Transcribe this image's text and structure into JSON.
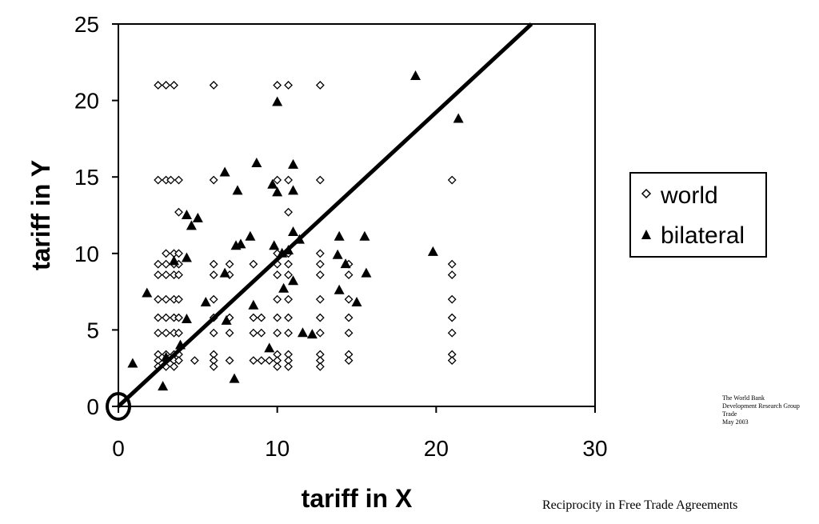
{
  "chart_data": {
    "type": "scatter",
    "xlabel": "tariff in X",
    "ylabel": "tariff in Y",
    "xlim": [
      0,
      30
    ],
    "ylim": [
      0,
      25
    ],
    "xticks": [
      0,
      10,
      20,
      30
    ],
    "yticks": [
      0,
      5,
      10,
      15,
      20,
      25
    ],
    "grid": false,
    "legend_position": "right",
    "reference_line": {
      "from": [
        0,
        0
      ],
      "to": [
        26,
        25
      ]
    },
    "highlight_origin": true,
    "series": [
      {
        "name": "world",
        "marker": "diamond-open",
        "points": [
          [
            2.5,
            21
          ],
          [
            3,
            21
          ],
          [
            3.5,
            21
          ],
          [
            6,
            21
          ],
          [
            10,
            21
          ],
          [
            10.7,
            21
          ],
          [
            12.7,
            21
          ],
          [
            2.5,
            14.8
          ],
          [
            3,
            14.8
          ],
          [
            3.3,
            14.8
          ],
          [
            3.8,
            14.8
          ],
          [
            6,
            14.8
          ],
          [
            10,
            14.8
          ],
          [
            10.7,
            14.8
          ],
          [
            12.7,
            14.8
          ],
          [
            21,
            14.8
          ],
          [
            3.8,
            12.7
          ],
          [
            10.7,
            12.7
          ],
          [
            3,
            10
          ],
          [
            3.5,
            10
          ],
          [
            3.8,
            10
          ],
          [
            10,
            10
          ],
          [
            10.7,
            10
          ],
          [
            12.7,
            10
          ],
          [
            2.5,
            9.3
          ],
          [
            3,
            9.3
          ],
          [
            3.5,
            9.3
          ],
          [
            3.8,
            9.3
          ],
          [
            6,
            9.3
          ],
          [
            7,
            9.3
          ],
          [
            8.5,
            9.3
          ],
          [
            10,
            9.3
          ],
          [
            10.7,
            9.3
          ],
          [
            12.7,
            9.3
          ],
          [
            14.5,
            9.3
          ],
          [
            21,
            9.3
          ],
          [
            2.5,
            8.6
          ],
          [
            3,
            8.6
          ],
          [
            3.5,
            8.6
          ],
          [
            3.8,
            8.6
          ],
          [
            6,
            8.6
          ],
          [
            7,
            8.6
          ],
          [
            10,
            8.6
          ],
          [
            10.7,
            8.6
          ],
          [
            12.7,
            8.6
          ],
          [
            14.5,
            8.6
          ],
          [
            21,
            8.6
          ],
          [
            2.5,
            7
          ],
          [
            3,
            7
          ],
          [
            3.5,
            7
          ],
          [
            3.8,
            7
          ],
          [
            6,
            7
          ],
          [
            10,
            7
          ],
          [
            10.7,
            7
          ],
          [
            12.7,
            7
          ],
          [
            14.5,
            7
          ],
          [
            21,
            7
          ],
          [
            2.5,
            5.8
          ],
          [
            3,
            5.8
          ],
          [
            3.5,
            5.8
          ],
          [
            3.8,
            5.8
          ],
          [
            6,
            5.8
          ],
          [
            7,
            5.8
          ],
          [
            8.5,
            5.8
          ],
          [
            9,
            5.8
          ],
          [
            10,
            5.8
          ],
          [
            10.7,
            5.8
          ],
          [
            12.7,
            5.8
          ],
          [
            14.5,
            5.8
          ],
          [
            21,
            5.8
          ],
          [
            2.5,
            4.8
          ],
          [
            3,
            4.8
          ],
          [
            3.5,
            4.8
          ],
          [
            3.8,
            4.8
          ],
          [
            6,
            4.8
          ],
          [
            7,
            4.8
          ],
          [
            8.5,
            4.8
          ],
          [
            9,
            4.8
          ],
          [
            10,
            4.8
          ],
          [
            10.7,
            4.8
          ],
          [
            12.7,
            4.8
          ],
          [
            14.5,
            4.8
          ],
          [
            21,
            4.8
          ],
          [
            2.5,
            3.4
          ],
          [
            3,
            3.4
          ],
          [
            3.5,
            3.4
          ],
          [
            3.8,
            3.4
          ],
          [
            6,
            3.4
          ],
          [
            10,
            3.4
          ],
          [
            10.7,
            3.4
          ],
          [
            12.7,
            3.4
          ],
          [
            14.5,
            3.4
          ],
          [
            21,
            3.4
          ],
          [
            2.5,
            3
          ],
          [
            3,
            3
          ],
          [
            3.5,
            3
          ],
          [
            3.8,
            3
          ],
          [
            4.8,
            3
          ],
          [
            6,
            3
          ],
          [
            7,
            3
          ],
          [
            8.5,
            3
          ],
          [
            9,
            3
          ],
          [
            9.5,
            3
          ],
          [
            10,
            3
          ],
          [
            10.7,
            3
          ],
          [
            12.7,
            3
          ],
          [
            14.5,
            3
          ],
          [
            21,
            3
          ],
          [
            2.5,
            2.6
          ],
          [
            3,
            2.6
          ],
          [
            3.5,
            2.6
          ],
          [
            6,
            2.6
          ],
          [
            10,
            2.6
          ],
          [
            10.7,
            2.6
          ],
          [
            12.7,
            2.6
          ]
        ]
      },
      {
        "name": "bilateral",
        "marker": "triangle-filled",
        "points": [
          [
            18.7,
            21.6
          ],
          [
            10,
            19.9
          ],
          [
            21.4,
            18.8
          ],
          [
            8.7,
            15.9
          ],
          [
            11,
            15.8
          ],
          [
            6.7,
            15.3
          ],
          [
            9.7,
            14.5
          ],
          [
            7.5,
            14.1
          ],
          [
            10,
            14
          ],
          [
            11,
            14.1
          ],
          [
            4.3,
            12.5
          ],
          [
            5,
            12.3
          ],
          [
            4.6,
            11.8
          ],
          [
            8.3,
            11.1
          ],
          [
            13.9,
            11.1
          ],
          [
            15.5,
            11.1
          ],
          [
            11,
            11.4
          ],
          [
            11.4,
            10.9
          ],
          [
            7.4,
            10.5
          ],
          [
            7.7,
            10.6
          ],
          [
            9.8,
            10.5
          ],
          [
            10.7,
            10.2
          ],
          [
            10.3,
            10
          ],
          [
            19.8,
            10.1
          ],
          [
            13.8,
            9.9
          ],
          [
            3.5,
            9.5
          ],
          [
            4.3,
            9.7
          ],
          [
            14.3,
            9.3
          ],
          [
            6.7,
            8.7
          ],
          [
            15.6,
            8.7
          ],
          [
            11,
            8.2
          ],
          [
            10.4,
            7.7
          ],
          [
            13.9,
            7.6
          ],
          [
            1.8,
            7.4
          ],
          [
            15,
            6.8
          ],
          [
            8.5,
            6.6
          ],
          [
            5.5,
            6.8
          ],
          [
            4.3,
            5.7
          ],
          [
            6.8,
            5.6
          ],
          [
            11.6,
            4.8
          ],
          [
            12.2,
            4.7
          ],
          [
            3.9,
            4
          ],
          [
            9.5,
            3.8
          ],
          [
            3,
            3.2
          ],
          [
            0.9,
            2.8
          ],
          [
            7.3,
            1.8
          ],
          [
            2.8,
            1.3
          ]
        ]
      }
    ]
  },
  "annotation": {
    "lines": [
      "The World Bank",
      "Development Research Group",
      "Trade",
      "May 2003"
    ]
  },
  "footer": {
    "title": "Reciprocity in Free Trade Agreements"
  }
}
